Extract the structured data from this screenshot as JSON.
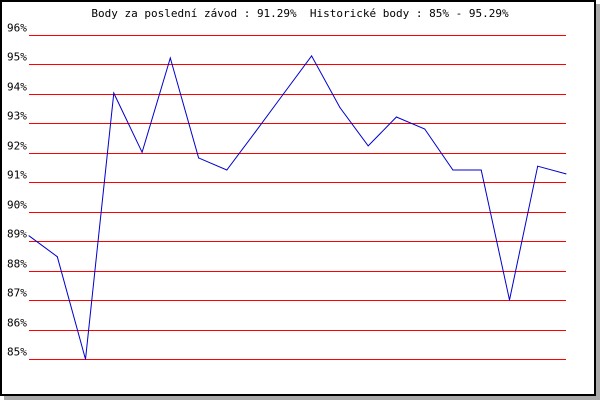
{
  "chart_data": {
    "type": "line",
    "title": "Body za poslední závod : 91.29%  Historické body : 85% - 95.29%",
    "xlabel": "",
    "ylabel": "",
    "ylim": [
      85,
      96
    ],
    "yticks": [
      "85%",
      "86%",
      "87%",
      "88%",
      "89%",
      "90%",
      "91%",
      "92%",
      "93%",
      "94%",
      "95%",
      "96%"
    ],
    "grid": true,
    "colors": {
      "line": "#0000cc",
      "grid": "#ff0000",
      "border": "#000000",
      "shadow": "#aaaaaa"
    },
    "series": [
      {
        "values": [
          89.19,
          88.48,
          85.0,
          94.03,
          92.02,
          95.22,
          91.83,
          91.42,
          92.7,
          94.0,
          95.29,
          93.54,
          92.24,
          93.22,
          92.81,
          91.42,
          91.42,
          87.01,
          91.55,
          91.29
        ]
      }
    ]
  }
}
